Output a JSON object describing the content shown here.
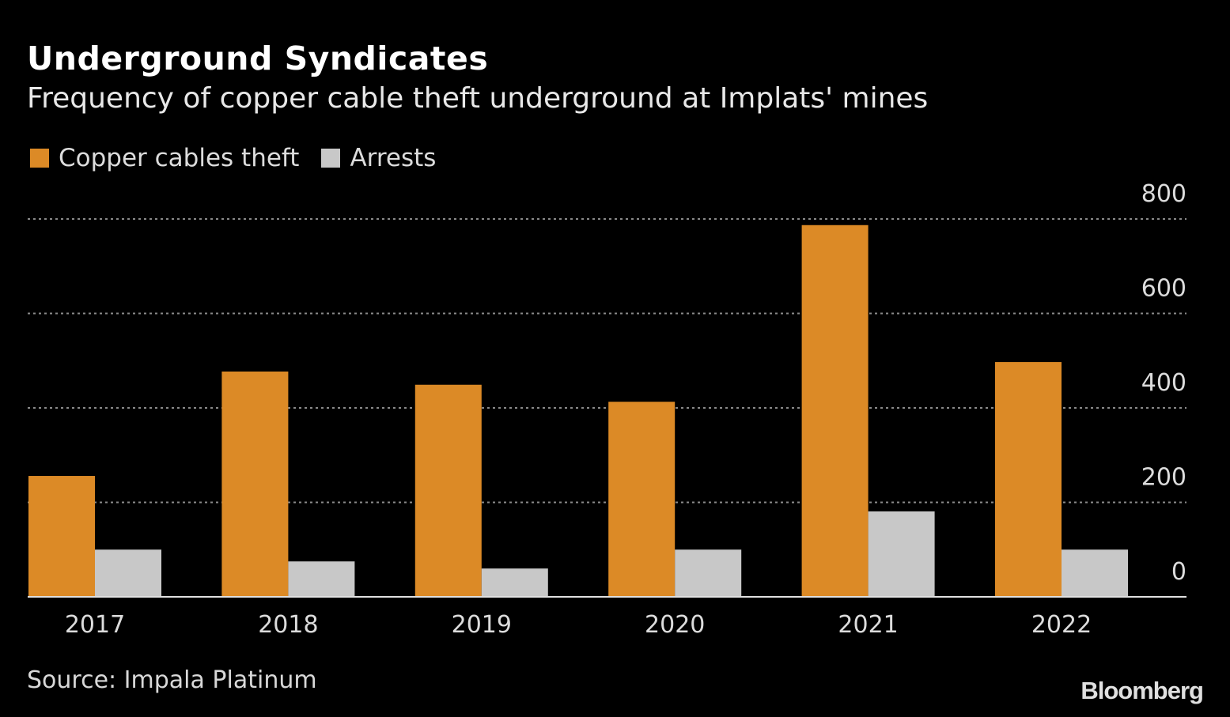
{
  "chart_data": {
    "type": "bar",
    "title": "Underground Syndicates",
    "subtitle": "Frequency of copper cable theft underground at Implats' mines",
    "categories": [
      "2017",
      "2018",
      "2019",
      "2020",
      "2021",
      "2022"
    ],
    "series": [
      {
        "name": "Copper cables theft",
        "color": "#dc8a26",
        "values": [
          256,
          477,
          449,
          413,
          787,
          497
        ]
      },
      {
        "name": "Arrests",
        "color": "#c8c8c8",
        "values": [
          100,
          75,
          60,
          100,
          181,
          100
        ]
      }
    ],
    "ylim": [
      0,
      800
    ],
    "yticks": [
      "0",
      "200",
      "400",
      "600",
      "800"
    ],
    "ytick_values": [
      0,
      200,
      400,
      600,
      800
    ],
    "y_axis_position": "right",
    "grid": true,
    "legend": "top-left",
    "source": "Source: Impala Platinum",
    "logo": "Bloomberg"
  }
}
